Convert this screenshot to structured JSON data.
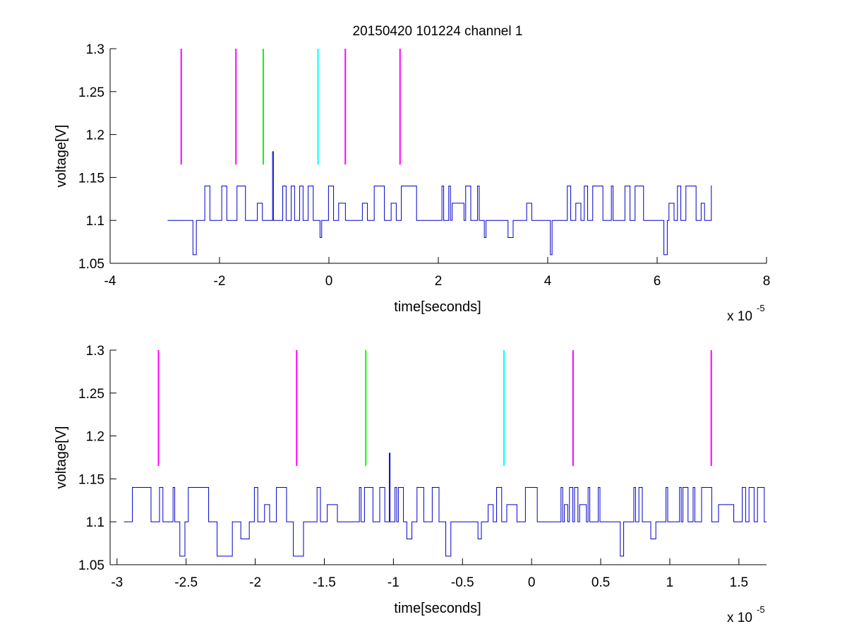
{
  "title": "20150420 101224 channel 1",
  "chart_data": [
    {
      "type": "line",
      "title": "20150420 101224 channel 1",
      "xlabel": "time[seconds]",
      "ylabel": "voltage[V]",
      "x_exponent_label": "x 10",
      "x_exponent": "-5",
      "xlim": [
        -4,
        8
      ],
      "ylim": [
        1.05,
        1.3
      ],
      "xticks": [
        -4,
        -2,
        0,
        2,
        4,
        6,
        8
      ],
      "xtick_labels": [
        "-4",
        "-2",
        "0",
        "2",
        "4",
        "6",
        "8"
      ],
      "yticks": [
        1.05,
        1.1,
        1.15,
        1.2,
        1.25,
        1.3
      ],
      "ytick_labels": [
        "1.05",
        "1.1",
        "1.15",
        "1.2",
        "1.25",
        "1.3"
      ],
      "grid": false,
      "signal": {
        "color": "#0000cc",
        "x_start": -2.95,
        "x_end": 7.0,
        "baseline": 1.1,
        "levels": [
          1.06,
          1.08,
          1.1,
          1.12,
          1.14
        ],
        "spike": {
          "x": -1.03,
          "y": 1.18
        }
      },
      "markers": [
        {
          "x": -2.7,
          "y_range": [
            1.165,
            1.3
          ],
          "color": "#ff00ff"
        },
        {
          "x": -1.7,
          "y_range": [
            1.165,
            1.3
          ],
          "color": "#ff00ff"
        },
        {
          "x": -1.2,
          "y_range": [
            1.165,
            1.3
          ],
          "color": "#00ff00"
        },
        {
          "x": -0.2,
          "y_range": [
            1.165,
            1.3
          ],
          "color": "#00ffff"
        },
        {
          "x": 0.3,
          "y_range": [
            1.165,
            1.3
          ],
          "color": "#ff00ff"
        },
        {
          "x": 1.3,
          "y_range": [
            1.165,
            1.3
          ],
          "color": "#ff00ff"
        }
      ]
    },
    {
      "type": "line",
      "title": "",
      "xlabel": "time[seconds]",
      "ylabel": "voltage[V]",
      "x_exponent_label": "x 10",
      "x_exponent": "-5",
      "xlim": [
        -3.05,
        1.7
      ],
      "ylim": [
        1.05,
        1.3
      ],
      "xticks": [
        -3,
        -2.5,
        -2,
        -1.5,
        -1,
        -0.5,
        0,
        0.5,
        1,
        1.5
      ],
      "xtick_labels": [
        "-3",
        "-2.5",
        "-2",
        "-1.5",
        "-1",
        "-0.5",
        "0",
        "0.5",
        "1",
        "1.5"
      ],
      "yticks": [
        1.05,
        1.1,
        1.15,
        1.2,
        1.25,
        1.3
      ],
      "ytick_labels": [
        "1.05",
        "1.1",
        "1.15",
        "1.2",
        "1.25",
        "1.3"
      ],
      "grid": false,
      "signal": {
        "color": "#0000cc",
        "x_start": -2.95,
        "x_end": 1.7,
        "baseline": 1.1,
        "levels": [
          1.06,
          1.08,
          1.1,
          1.12,
          1.14
        ],
        "spike": {
          "x": -1.03,
          "y": 1.18
        }
      },
      "markers": [
        {
          "x": -2.7,
          "y_range": [
            1.165,
            1.3
          ],
          "color": "#ff00ff"
        },
        {
          "x": -1.7,
          "y_range": [
            1.165,
            1.3
          ],
          "color": "#ff00ff"
        },
        {
          "x": -1.2,
          "y_range": [
            1.165,
            1.3
          ],
          "color": "#00ff00"
        },
        {
          "x": -0.2,
          "y_range": [
            1.165,
            1.3
          ],
          "color": "#00ffff"
        },
        {
          "x": 0.3,
          "y_range": [
            1.165,
            1.3
          ],
          "color": "#ff00ff"
        },
        {
          "x": 1.3,
          "y_range": [
            1.165,
            1.3
          ],
          "color": "#ff00ff"
        }
      ]
    }
  ]
}
